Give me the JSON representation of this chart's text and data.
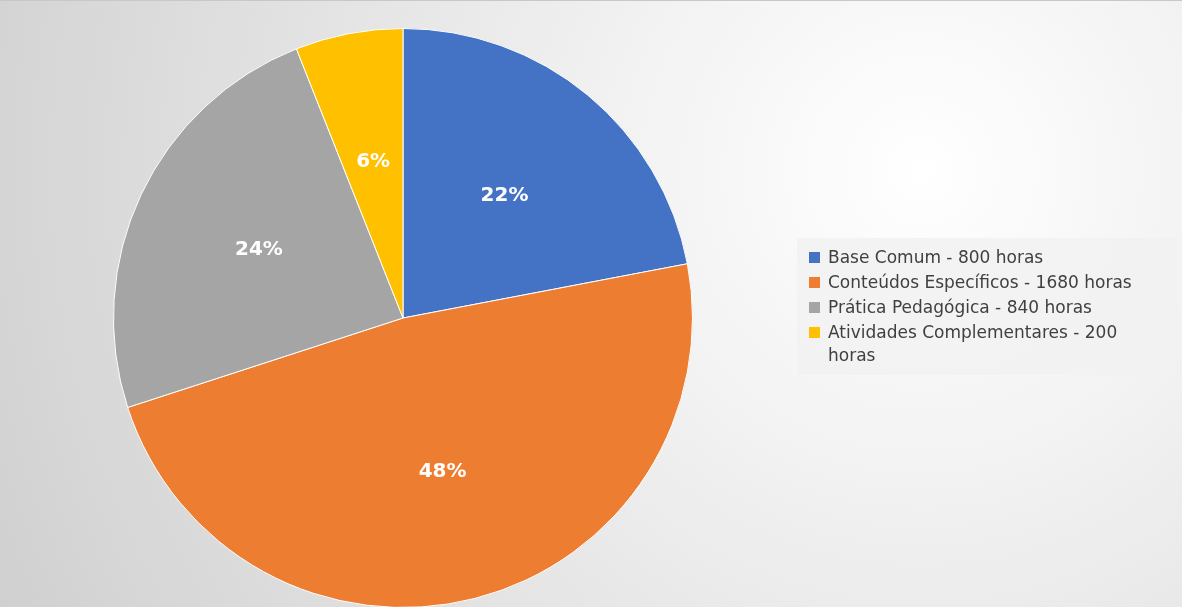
{
  "chart_data": {
    "type": "pie",
    "categories": [
      "Base Comum - 800 horas",
      "Conteúdos Específicos - 1680 horas",
      "Prática Pedagógica - 840 horas",
      "Atividades Complementares - 200 horas"
    ],
    "values": [
      22,
      48,
      24,
      6
    ],
    "value_labels": [
      "22%",
      "48%",
      "24%",
      "6%"
    ],
    "colors": [
      "#4472c4",
      "#ed7d31",
      "#a5a5a5",
      "#ffc000"
    ],
    "legend": "right"
  }
}
